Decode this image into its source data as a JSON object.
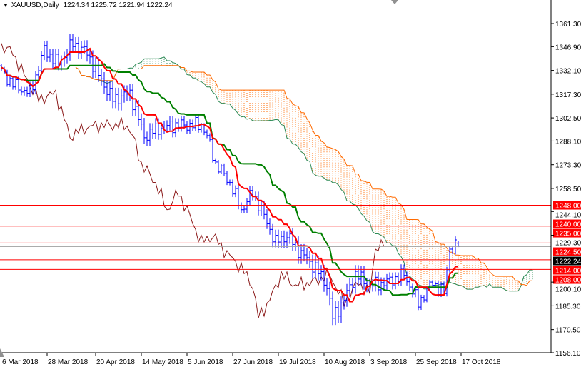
{
  "header": {
    "symbol": "XAUUSD,Daily",
    "ohlc": "1224.34 1225.72 1221.94 1222.24"
  },
  "colors": {
    "bars": "#0000ff",
    "tenkan": "#ff0000",
    "kijun": "#008000",
    "chikou": "#8b1a1a",
    "cloud_bear": "#ff6a00",
    "cloud_bull": "#2e8b57",
    "level": "#ff0000",
    "level_label_bg": "#ff0000",
    "price_line": "#a0a0a0",
    "price_label_bg": "#000000"
  },
  "chart_data": {
    "type": "ohlc-bar with ichimoku",
    "title": "XAUUSD,Daily",
    "last_bar": {
      "open": 1224.34,
      "high": 1225.72,
      "low": 1221.94,
      "close": 1222.24
    },
    "ylim": [
      1156.1,
      1361.3
    ],
    "y_ticks": [
      "1361.30",
      "1346.90",
      "1332.10",
      "1317.30",
      "1302.50",
      "1288.10",
      "1273.30",
      "1258.50",
      "1244.10",
      "1229.30",
      "1200.10",
      "1185.30",
      "1170.50",
      "1156.10"
    ],
    "x_ticks": [
      {
        "date": "2018-03-06",
        "label": "6 Mar 2018"
      },
      {
        "date": "2018-03-28",
        "label": "28 Mar 2018"
      },
      {
        "date": "2018-04-20",
        "label": "20 Apr 2018"
      },
      {
        "date": "2018-05-14",
        "label": "14 May 2018"
      },
      {
        "date": "2018-06-05",
        "label": "5 Jun 2018"
      },
      {
        "date": "2018-06-27",
        "label": "27 Jun 2018"
      },
      {
        "date": "2018-07-19",
        "label": "19 Jul 2018"
      },
      {
        "date": "2018-08-10",
        "label": "10 Aug 2018"
      },
      {
        "date": "2018-09-03",
        "label": "3 Sep 2018"
      },
      {
        "date": "2018-09-25",
        "label": "25 Sep 2018"
      },
      {
        "date": "2018-10-17",
        "label": "17 Oct 2018"
      }
    ],
    "close_path": [
      [
        "2018-03-06",
        1331
      ],
      [
        "2018-03-13",
        1322
      ],
      [
        "2018-03-20",
        1318
      ],
      [
        "2018-03-27",
        1345
      ],
      [
        "2018-04-03",
        1336
      ],
      [
        "2018-04-10",
        1349
      ],
      [
        "2018-04-17",
        1343
      ],
      [
        "2018-04-23",
        1329
      ],
      [
        "2018-04-30",
        1314
      ],
      [
        "2018-05-08",
        1318
      ],
      [
        "2018-05-15",
        1291
      ],
      [
        "2018-05-22",
        1296
      ],
      [
        "2018-05-29",
        1298
      ],
      [
        "2018-06-12",
        1298
      ],
      [
        "2018-06-14",
        1291
      ],
      [
        "2018-06-19",
        1274
      ],
      [
        "2018-06-26",
        1262
      ],
      [
        "2018-07-02",
        1245
      ],
      [
        "2018-07-06",
        1256
      ],
      [
        "2018-07-11",
        1245
      ],
      [
        "2018-07-18",
        1225
      ],
      [
        "2018-07-24",
        1229
      ],
      [
        "2018-07-31",
        1218
      ],
      [
        "2018-08-07",
        1209
      ],
      [
        "2018-08-13",
        1198
      ],
      [
        "2018-08-15",
        1178
      ],
      [
        "2018-08-21",
        1189
      ],
      [
        "2018-08-27",
        1205
      ],
      [
        "2018-09-03",
        1198
      ],
      [
        "2018-09-11",
        1200
      ],
      [
        "2018-09-19",
        1205
      ],
      [
        "2018-09-26",
        1187
      ],
      [
        "2018-10-03",
        1200
      ],
      [
        "2018-10-09",
        1193
      ],
      [
        "2018-10-11",
        1222
      ],
      [
        "2018-10-16",
        1222.24
      ]
    ],
    "levels": [
      {
        "value": 1248.0,
        "label": "1248.00"
      },
      {
        "value": 1240.0,
        "label": "1240.00"
      },
      {
        "value": 1235.0,
        "label": "1235.00"
      },
      {
        "value": 1224.5,
        "label": "1224.50"
      },
      {
        "value": 1214.0,
        "label": "1214.00"
      },
      {
        "value": 1208.0,
        "label": "1208.00"
      }
    ],
    "current_price": {
      "value": 1222.24,
      "label": "1222.24"
    },
    "indicators": [
      "Tenkan-sen",
      "Kijun-sen",
      "Chikou Span",
      "Senkou Span A",
      "Senkou Span B"
    ],
    "grid": false
  }
}
